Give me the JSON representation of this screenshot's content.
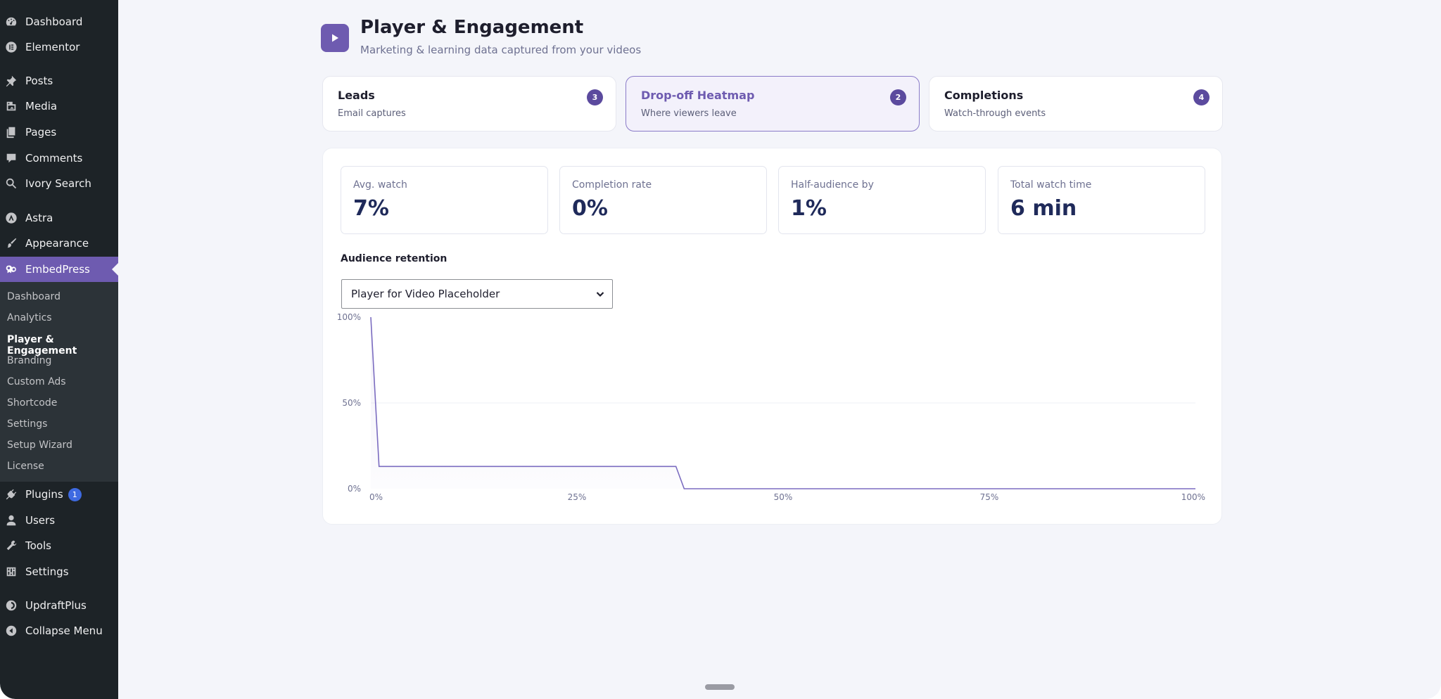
{
  "sidebar": {
    "items": [
      {
        "label": "Dashboard",
        "icon": "dashboard-icon"
      },
      {
        "label": "Elementor",
        "icon": "elementor-icon"
      },
      {
        "label": "Posts",
        "icon": "pin-icon"
      },
      {
        "label": "Media",
        "icon": "media-icon"
      },
      {
        "label": "Pages",
        "icon": "pages-icon"
      },
      {
        "label": "Comments",
        "icon": "comment-icon"
      },
      {
        "label": "Ivory Search",
        "icon": "search-icon"
      },
      {
        "label": "Astra",
        "icon": "astra-icon"
      },
      {
        "label": "Appearance",
        "icon": "brush-icon"
      },
      {
        "label": "EmbedPress",
        "icon": "embedpress-icon"
      },
      {
        "label": "Plugins",
        "icon": "plugin-icon",
        "badge": "1"
      },
      {
        "label": "Users",
        "icon": "user-icon"
      },
      {
        "label": "Tools",
        "icon": "wrench-icon"
      },
      {
        "label": "Settings",
        "icon": "settings-icon"
      },
      {
        "label": "UpdraftPlus",
        "icon": "updraft-icon"
      },
      {
        "label": "Collapse Menu",
        "icon": "collapse-icon"
      }
    ],
    "submenu": [
      "Dashboard",
      "Analytics",
      "Player & Engagement",
      "Branding",
      "Custom Ads",
      "Shortcode",
      "Settings",
      "Setup Wizard",
      "License"
    ],
    "active_color": "#6e5bb0"
  },
  "header": {
    "title": "Player & Engagement",
    "subtitle": "Marketing & learning data captured from your videos"
  },
  "tabs": [
    {
      "title": "Leads",
      "subtitle": "Email captures",
      "count": "3"
    },
    {
      "title": "Drop-off Heatmap",
      "subtitle": "Where viewers leave",
      "count": "2"
    },
    {
      "title": "Completions",
      "subtitle": "Watch-through events",
      "count": "4"
    }
  ],
  "stats": [
    {
      "label": "Avg. watch",
      "value": "7%"
    },
    {
      "label": "Completion rate",
      "value": "0%"
    },
    {
      "label": "Half-audience by",
      "value": "1%"
    },
    {
      "label": "Total watch time",
      "value": "6 min"
    }
  ],
  "retention": {
    "title": "Audience retention",
    "select_value": "Player for Video Placeholder"
  },
  "chart_data": {
    "type": "line",
    "title": "",
    "xlabel": "",
    "ylabel": "",
    "x_ticks": [
      "0%",
      "25%",
      "50%",
      "75%",
      "100%"
    ],
    "y_ticks": [
      "0%",
      "50%",
      "100%"
    ],
    "xlim": [
      0,
      100
    ],
    "ylim": [
      0,
      100
    ],
    "x": [
      0,
      1,
      37,
      38,
      100
    ],
    "y": [
      100,
      13,
      13,
      0,
      0
    ],
    "grid": true,
    "line_color": "#7b6cc0"
  }
}
